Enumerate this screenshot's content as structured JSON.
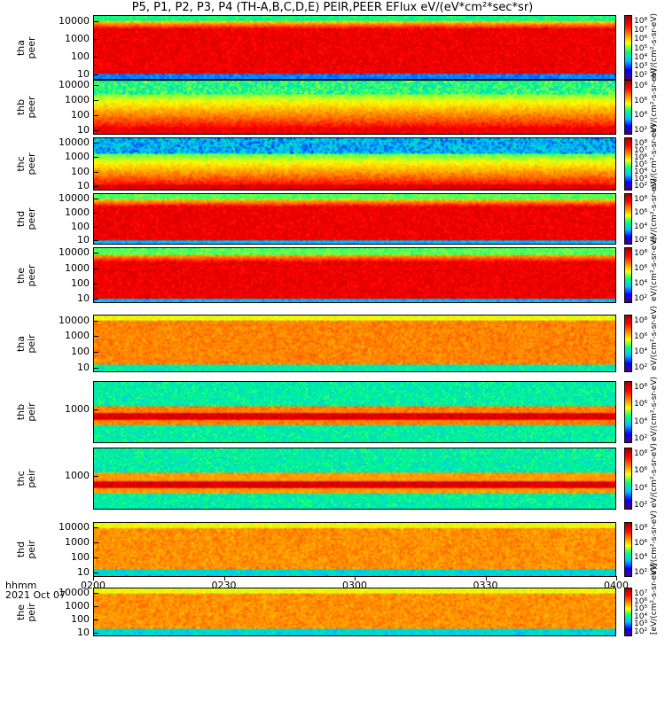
{
  "chart_data": {
    "type": "heatmap",
    "title": "P5, P1, P2, P3, P4 (TH-A,B,C,D,E) PEIR,PEER EFlux eV/(eV*cm²*sec*sr)",
    "x_label": "hhmm",
    "x_date": "2021 Oct 07",
    "x_ticks": [
      "0200",
      "0230",
      "0300",
      "0330",
      "0400"
    ],
    "panels": [
      {
        "label": "tha\npeer",
        "y_ticks": [
          "10000",
          "1000",
          "100",
          "10"
        ],
        "colorbar_ticks": [
          "10⁸",
          "10⁷",
          "10⁶",
          "10⁵",
          "10⁴",
          "10³",
          "10²"
        ],
        "unit": "eV/(cm²-s-sr-eV)"
      },
      {
        "label": "thb\npeer",
        "y_ticks": [
          "10000",
          "1000",
          "100",
          "10"
        ],
        "colorbar_ticks": [
          "10⁸",
          "10⁶",
          "10⁴",
          "10²"
        ],
        "unit": "eV/(cm²-s-sr-eV)"
      },
      {
        "label": "thc\npeer",
        "y_ticks": [
          "10000",
          "1000",
          "100",
          "10"
        ],
        "colorbar_ticks": [
          "10⁸",
          "10⁷",
          "10⁶",
          "10⁵",
          "10⁴",
          "10³",
          "10²"
        ],
        "unit": "eV/(cm²-s-sr-eV)"
      },
      {
        "label": "thd\npeer",
        "y_ticks": [
          "10000",
          "1000",
          "100",
          "10"
        ],
        "colorbar_ticks": [
          "10⁸",
          "10⁶",
          "10⁴",
          "10²"
        ],
        "unit": "eV/(cm²-s-sr-eV)"
      },
      {
        "label": "the\npeer",
        "y_ticks": [
          "10000",
          "1000",
          "100",
          "10"
        ],
        "colorbar_ticks": [
          "10⁸",
          "10⁶",
          "10⁴",
          "10²"
        ],
        "unit": "eV/(cm²-s-sr-eV)"
      },
      {
        "label": "tha\npeir",
        "y_ticks": [
          "10000",
          "1000",
          "100",
          "10"
        ],
        "colorbar_ticks": [
          "10⁸",
          "10⁶",
          "10⁴",
          "10²"
        ],
        "unit": "eV/(cm²-s-sr-eV)"
      },
      {
        "label": "thb\npeir",
        "y_ticks": [
          "1000"
        ],
        "colorbar_ticks": [
          "10⁸",
          "10⁶",
          "10⁴",
          "10²"
        ],
        "unit": "eV/(cm²-s-sr-eV)"
      },
      {
        "label": "thc\npeir",
        "y_ticks": [
          "1000"
        ],
        "colorbar_ticks": [
          "10⁸",
          "10⁶",
          "10⁴",
          "10²"
        ],
        "unit": "eV/(cm²-s-sr-eV)"
      },
      {
        "label": "thd\npeir",
        "y_ticks": [
          "10000",
          "1000",
          "100",
          "10"
        ],
        "colorbar_ticks": [
          "10⁸",
          "10⁶",
          "10⁴",
          "10²"
        ],
        "unit": "eV/(cm²-s-sr-eV)"
      },
      {
        "label": "the\npeir",
        "y_ticks": [
          "10000",
          "1000",
          "100",
          "10"
        ],
        "colorbar_ticks": [
          "10⁷",
          "10⁶",
          "10⁵",
          "10⁴",
          "10³",
          "10²"
        ],
        "unit": "[eV/(cm²-s-sr-eV)]"
      }
    ]
  }
}
